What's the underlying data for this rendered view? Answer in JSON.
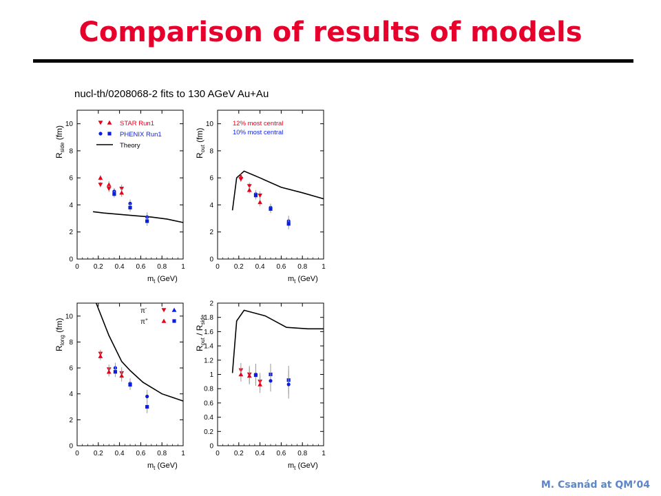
{
  "slide": {
    "title": "Comparison of results of models",
    "subtitle": "nucl-th/0208068-2 fits to 130 AGeV Au+Au",
    "footer": "M. Csanád at QM’04"
  },
  "colors": {
    "title": "#e8002d",
    "star": "#e8001a",
    "phenix": "#0a1ee0",
    "theory": "#000000",
    "footer": "#5b86c9"
  },
  "chart_data": [
    {
      "type": "scatter",
      "ylabel_main": "R",
      "ylabel_sub": "side",
      "ylabel_unit": "(fm)",
      "xlabel_main": "m",
      "xlabel_sub": "t",
      "xlabel_unit": "(GeV)",
      "xlim": [
        0,
        1
      ],
      "ylim": [
        0,
        11
      ],
      "xticks": [
        "0",
        "0.2",
        "0.4",
        "0.6",
        "0.8",
        "1"
      ],
      "yticks": [
        "0",
        "2",
        "4",
        "6",
        "8",
        "10"
      ],
      "legend": [
        {
          "label": "STAR Run1",
          "kind": "star"
        },
        {
          "label": "PHENIX Run1",
          "kind": "phenix"
        },
        {
          "label": "Theory",
          "kind": "line"
        }
      ],
      "theory": [
        [
          0.15,
          3.5
        ],
        [
          0.25,
          3.4
        ],
        [
          0.4,
          3.3
        ],
        [
          0.55,
          3.2
        ],
        [
          0.7,
          3.1
        ],
        [
          0.85,
          2.95
        ],
        [
          1.0,
          2.7
        ]
      ],
      "points": [
        {
          "x": 0.22,
          "y": 6.0,
          "s": "star",
          "m": "up",
          "e": 0.2
        },
        {
          "x": 0.22,
          "y": 5.5,
          "s": "star",
          "m": "down",
          "e": 0.2
        },
        {
          "x": 0.3,
          "y": 5.5,
          "s": "star",
          "m": "up",
          "e": 0.25
        },
        {
          "x": 0.3,
          "y": 5.2,
          "s": "star",
          "m": "down",
          "e": 0.25
        },
        {
          "x": 0.35,
          "y": 5.0,
          "s": "phenix",
          "m": "circle",
          "e": 0.25
        },
        {
          "x": 0.35,
          "y": 4.8,
          "s": "phenix",
          "m": "square",
          "e": 0.25
        },
        {
          "x": 0.42,
          "y": 5.2,
          "s": "star",
          "m": "down",
          "e": 0.3
        },
        {
          "x": 0.42,
          "y": 4.9,
          "s": "star",
          "m": "up",
          "e": 0.3
        },
        {
          "x": 0.5,
          "y": 4.1,
          "s": "phenix",
          "m": "circle",
          "e": 0.3
        },
        {
          "x": 0.5,
          "y": 3.8,
          "s": "phenix",
          "m": "square",
          "e": 0.3
        },
        {
          "x": 0.66,
          "y": 3.1,
          "s": "phenix",
          "m": "circle",
          "e": 0.35
        },
        {
          "x": 0.66,
          "y": 2.8,
          "s": "phenix",
          "m": "square",
          "e": 0.35
        }
      ]
    },
    {
      "type": "scatter",
      "ylabel_main": "R",
      "ylabel_sub": "out",
      "ylabel_unit": "(fm)",
      "xlabel_main": "m",
      "xlabel_sub": "t",
      "xlabel_unit": "(GeV)",
      "xlim": [
        0,
        1
      ],
      "ylim": [
        0,
        11
      ],
      "xticks": [
        "0",
        "0.2",
        "0.4",
        "0.6",
        "0.8",
        "1"
      ],
      "yticks": [
        "0",
        "2",
        "4",
        "6",
        "8",
        "10"
      ],
      "notes": [
        {
          "label": "12% most central",
          "kind": "star"
        },
        {
          "label": "10% most central",
          "kind": "phenix"
        }
      ],
      "theory": [
        [
          0.14,
          3.6
        ],
        [
          0.18,
          6.0
        ],
        [
          0.25,
          6.5
        ],
        [
          0.4,
          6.0
        ],
        [
          0.6,
          5.3
        ],
        [
          0.8,
          4.9
        ],
        [
          1.0,
          4.45
        ]
      ],
      "points": [
        {
          "x": 0.22,
          "y": 6.1,
          "s": "star",
          "m": "up",
          "e": 0.2
        },
        {
          "x": 0.22,
          "y": 5.9,
          "s": "star",
          "m": "down",
          "e": 0.2
        },
        {
          "x": 0.3,
          "y": 5.4,
          "s": "star",
          "m": "down",
          "e": 0.25
        },
        {
          "x": 0.3,
          "y": 5.1,
          "s": "star",
          "m": "up",
          "e": 0.25
        },
        {
          "x": 0.36,
          "y": 4.8,
          "s": "phenix",
          "m": "circle",
          "e": 0.3
        },
        {
          "x": 0.36,
          "y": 4.7,
          "s": "phenix",
          "m": "square",
          "e": 0.3
        },
        {
          "x": 0.4,
          "y": 4.7,
          "s": "star",
          "m": "down",
          "e": 0.3
        },
        {
          "x": 0.4,
          "y": 4.2,
          "s": "star",
          "m": "up",
          "e": 0.3
        },
        {
          "x": 0.5,
          "y": 3.8,
          "s": "phenix",
          "m": "circle",
          "e": 0.3
        },
        {
          "x": 0.5,
          "y": 3.7,
          "s": "phenix",
          "m": "square",
          "e": 0.3
        },
        {
          "x": 0.67,
          "y": 2.8,
          "s": "phenix",
          "m": "circle",
          "e": 0.4
        },
        {
          "x": 0.67,
          "y": 2.6,
          "s": "phenix",
          "m": "square",
          "e": 0.4
        }
      ]
    },
    {
      "type": "scatter",
      "ylabel_main": "R",
      "ylabel_sub": "long",
      "ylabel_unit": "(fm)",
      "xlabel_main": "m",
      "xlabel_sub": "t",
      "xlabel_unit": "(GeV)",
      "xlim": [
        0,
        1
      ],
      "ylim": [
        0,
        11
      ],
      "xticks": [
        "0",
        "0.2",
        "0.4",
        "0.6",
        "0.8",
        "1"
      ],
      "yticks": [
        "0",
        "2",
        "4",
        "6",
        "8",
        "10"
      ],
      "legend": [
        {
          "label": "π",
          "sup": "-",
          "kind": "minus"
        },
        {
          "label": "π",
          "sup": "+",
          "kind": "plus"
        }
      ],
      "theory": [
        [
          0.18,
          11.0
        ],
        [
          0.3,
          8.5
        ],
        [
          0.42,
          6.5
        ],
        [
          0.5,
          5.8
        ],
        [
          0.62,
          4.9
        ],
        [
          0.8,
          4.0
        ],
        [
          1.0,
          3.45
        ]
      ],
      "points": [
        {
          "x": 0.22,
          "y": 7.1,
          "s": "star",
          "m": "down",
          "e": 0.3
        },
        {
          "x": 0.22,
          "y": 6.9,
          "s": "star",
          "m": "up",
          "e": 0.3
        },
        {
          "x": 0.3,
          "y": 5.9,
          "s": "star",
          "m": "down",
          "e": 0.35
        },
        {
          "x": 0.3,
          "y": 5.7,
          "s": "star",
          "m": "up",
          "e": 0.35
        },
        {
          "x": 0.36,
          "y": 6.0,
          "s": "phenix",
          "m": "circle",
          "e": 0.4
        },
        {
          "x": 0.36,
          "y": 5.7,
          "s": "phenix",
          "m": "square",
          "e": 0.4
        },
        {
          "x": 0.42,
          "y": 5.6,
          "s": "star",
          "m": "down",
          "e": 0.45
        },
        {
          "x": 0.42,
          "y": 5.4,
          "s": "star",
          "m": "up",
          "e": 0.45
        },
        {
          "x": 0.5,
          "y": 4.8,
          "s": "phenix",
          "m": "circle",
          "e": 0.4
        },
        {
          "x": 0.5,
          "y": 4.7,
          "s": "phenix",
          "m": "square",
          "e": 0.4
        },
        {
          "x": 0.66,
          "y": 3.8,
          "s": "phenix",
          "m": "circle",
          "e": 0.5
        },
        {
          "x": 0.66,
          "y": 3.0,
          "s": "phenix",
          "m": "square",
          "e": 0.5
        }
      ]
    },
    {
      "type": "scatter",
      "ylabel_main": "R",
      "ylabel_sub": "out",
      "ylabel_unit": "/ R",
      "ylabel_sub2": "side",
      "xlabel_main": "m",
      "xlabel_sub": "t",
      "xlabel_unit": "(GeV)",
      "xlim": [
        0,
        1
      ],
      "ylim": [
        0,
        2
      ],
      "xticks": [
        "0",
        "0.2",
        "0.4",
        "0.6",
        "0.8",
        "1"
      ],
      "yticks": [
        "0",
        "0.2",
        "0.4",
        "0.6",
        "0.8",
        "1",
        "1.2",
        "1.4",
        "1.6",
        "1.8",
        "2"
      ],
      "theory": [
        [
          0.14,
          1.02
        ],
        [
          0.18,
          1.75
        ],
        [
          0.25,
          1.9
        ],
        [
          0.45,
          1.82
        ],
        [
          0.65,
          1.66
        ],
        [
          0.85,
          1.64
        ],
        [
          1.0,
          1.64
        ]
      ],
      "points": [
        {
          "x": 0.22,
          "y": 1.06,
          "s": "star",
          "m": "down",
          "e": 0.1
        },
        {
          "x": 0.22,
          "y": 1.0,
          "s": "star",
          "m": "up",
          "e": 0.1
        },
        {
          "x": 0.3,
          "y": 1.0,
          "s": "star",
          "m": "down",
          "e": 0.12
        },
        {
          "x": 0.3,
          "y": 0.98,
          "s": "star",
          "m": "up",
          "e": 0.12
        },
        {
          "x": 0.36,
          "y": 1.0,
          "s": "phenix",
          "m": "circle",
          "e": 0.15
        },
        {
          "x": 0.36,
          "y": 0.99,
          "s": "phenix",
          "m": "square",
          "e": 0.15
        },
        {
          "x": 0.4,
          "y": 0.9,
          "s": "star",
          "m": "down",
          "e": 0.12
        },
        {
          "x": 0.4,
          "y": 0.86,
          "s": "star",
          "m": "up",
          "e": 0.12
        },
        {
          "x": 0.5,
          "y": 1.0,
          "s": "phenix",
          "m": "square",
          "e": 0.15
        },
        {
          "x": 0.5,
          "y": 0.91,
          "s": "phenix",
          "m": "circle",
          "e": 0.15
        },
        {
          "x": 0.67,
          "y": 0.92,
          "s": "phenix",
          "m": "square",
          "e": 0.2
        },
        {
          "x": 0.67,
          "y": 0.86,
          "s": "phenix",
          "m": "circle",
          "e": 0.2
        }
      ]
    }
  ]
}
